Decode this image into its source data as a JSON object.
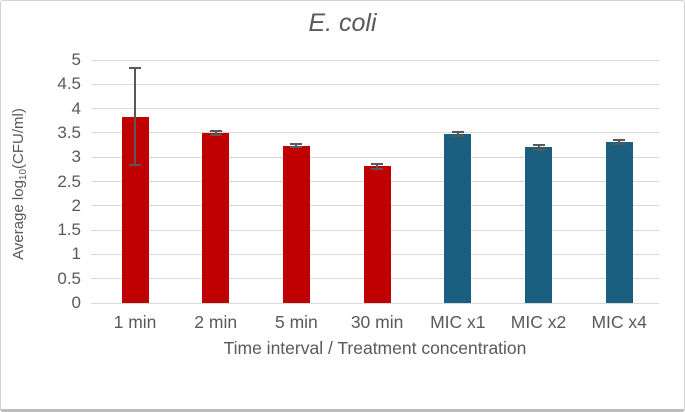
{
  "chart_data": {
    "type": "bar",
    "title": "E. coli",
    "categories": [
      "1 min",
      "2 min",
      "5 min",
      "30 min",
      "MIC x1",
      "MIC x2",
      "MIC x4"
    ],
    "values": [
      3.83,
      3.49,
      3.24,
      2.81,
      3.47,
      3.2,
      3.32
    ],
    "errors": [
      1.0,
      0.04,
      0.03,
      0.05,
      0.04,
      0.05,
      0.04
    ],
    "bar_colors": [
      "#c00000",
      "#c00000",
      "#c00000",
      "#c00000",
      "#1a5f7f",
      "#1a5f7f",
      "#1a5f7f"
    ],
    "groups": [
      {
        "name": "Time interval",
        "color": "#c00000",
        "categories": [
          "1 min",
          "2 min",
          "5 min",
          "30 min"
        ]
      },
      {
        "name": "Treatment concentration",
        "color": "#1a5f7f",
        "categories": [
          "MIC x1",
          "MIC x2",
          "MIC x4"
        ]
      }
    ],
    "xlabel": "Time interval / Treatment concentration",
    "ylabel": "Average log10(CFU/ml)",
    "ylabel_parts": {
      "pre": "Average log",
      "sub": "10",
      "post": "(CFU/ml)"
    },
    "ylim": [
      0,
      5
    ],
    "ytick_step": 0.5,
    "yticks": [
      0,
      0.5,
      1,
      1.5,
      2,
      2.5,
      3,
      3.5,
      4,
      4.5,
      5
    ],
    "grid": true,
    "legend": "none",
    "colors": {
      "bar_red": "#c00000",
      "bar_teal": "#1a5f7f",
      "error_bar": "#595959",
      "gridline": "#d9d9d9",
      "axis_text": "#595959",
      "title_text": "#595959"
    }
  }
}
